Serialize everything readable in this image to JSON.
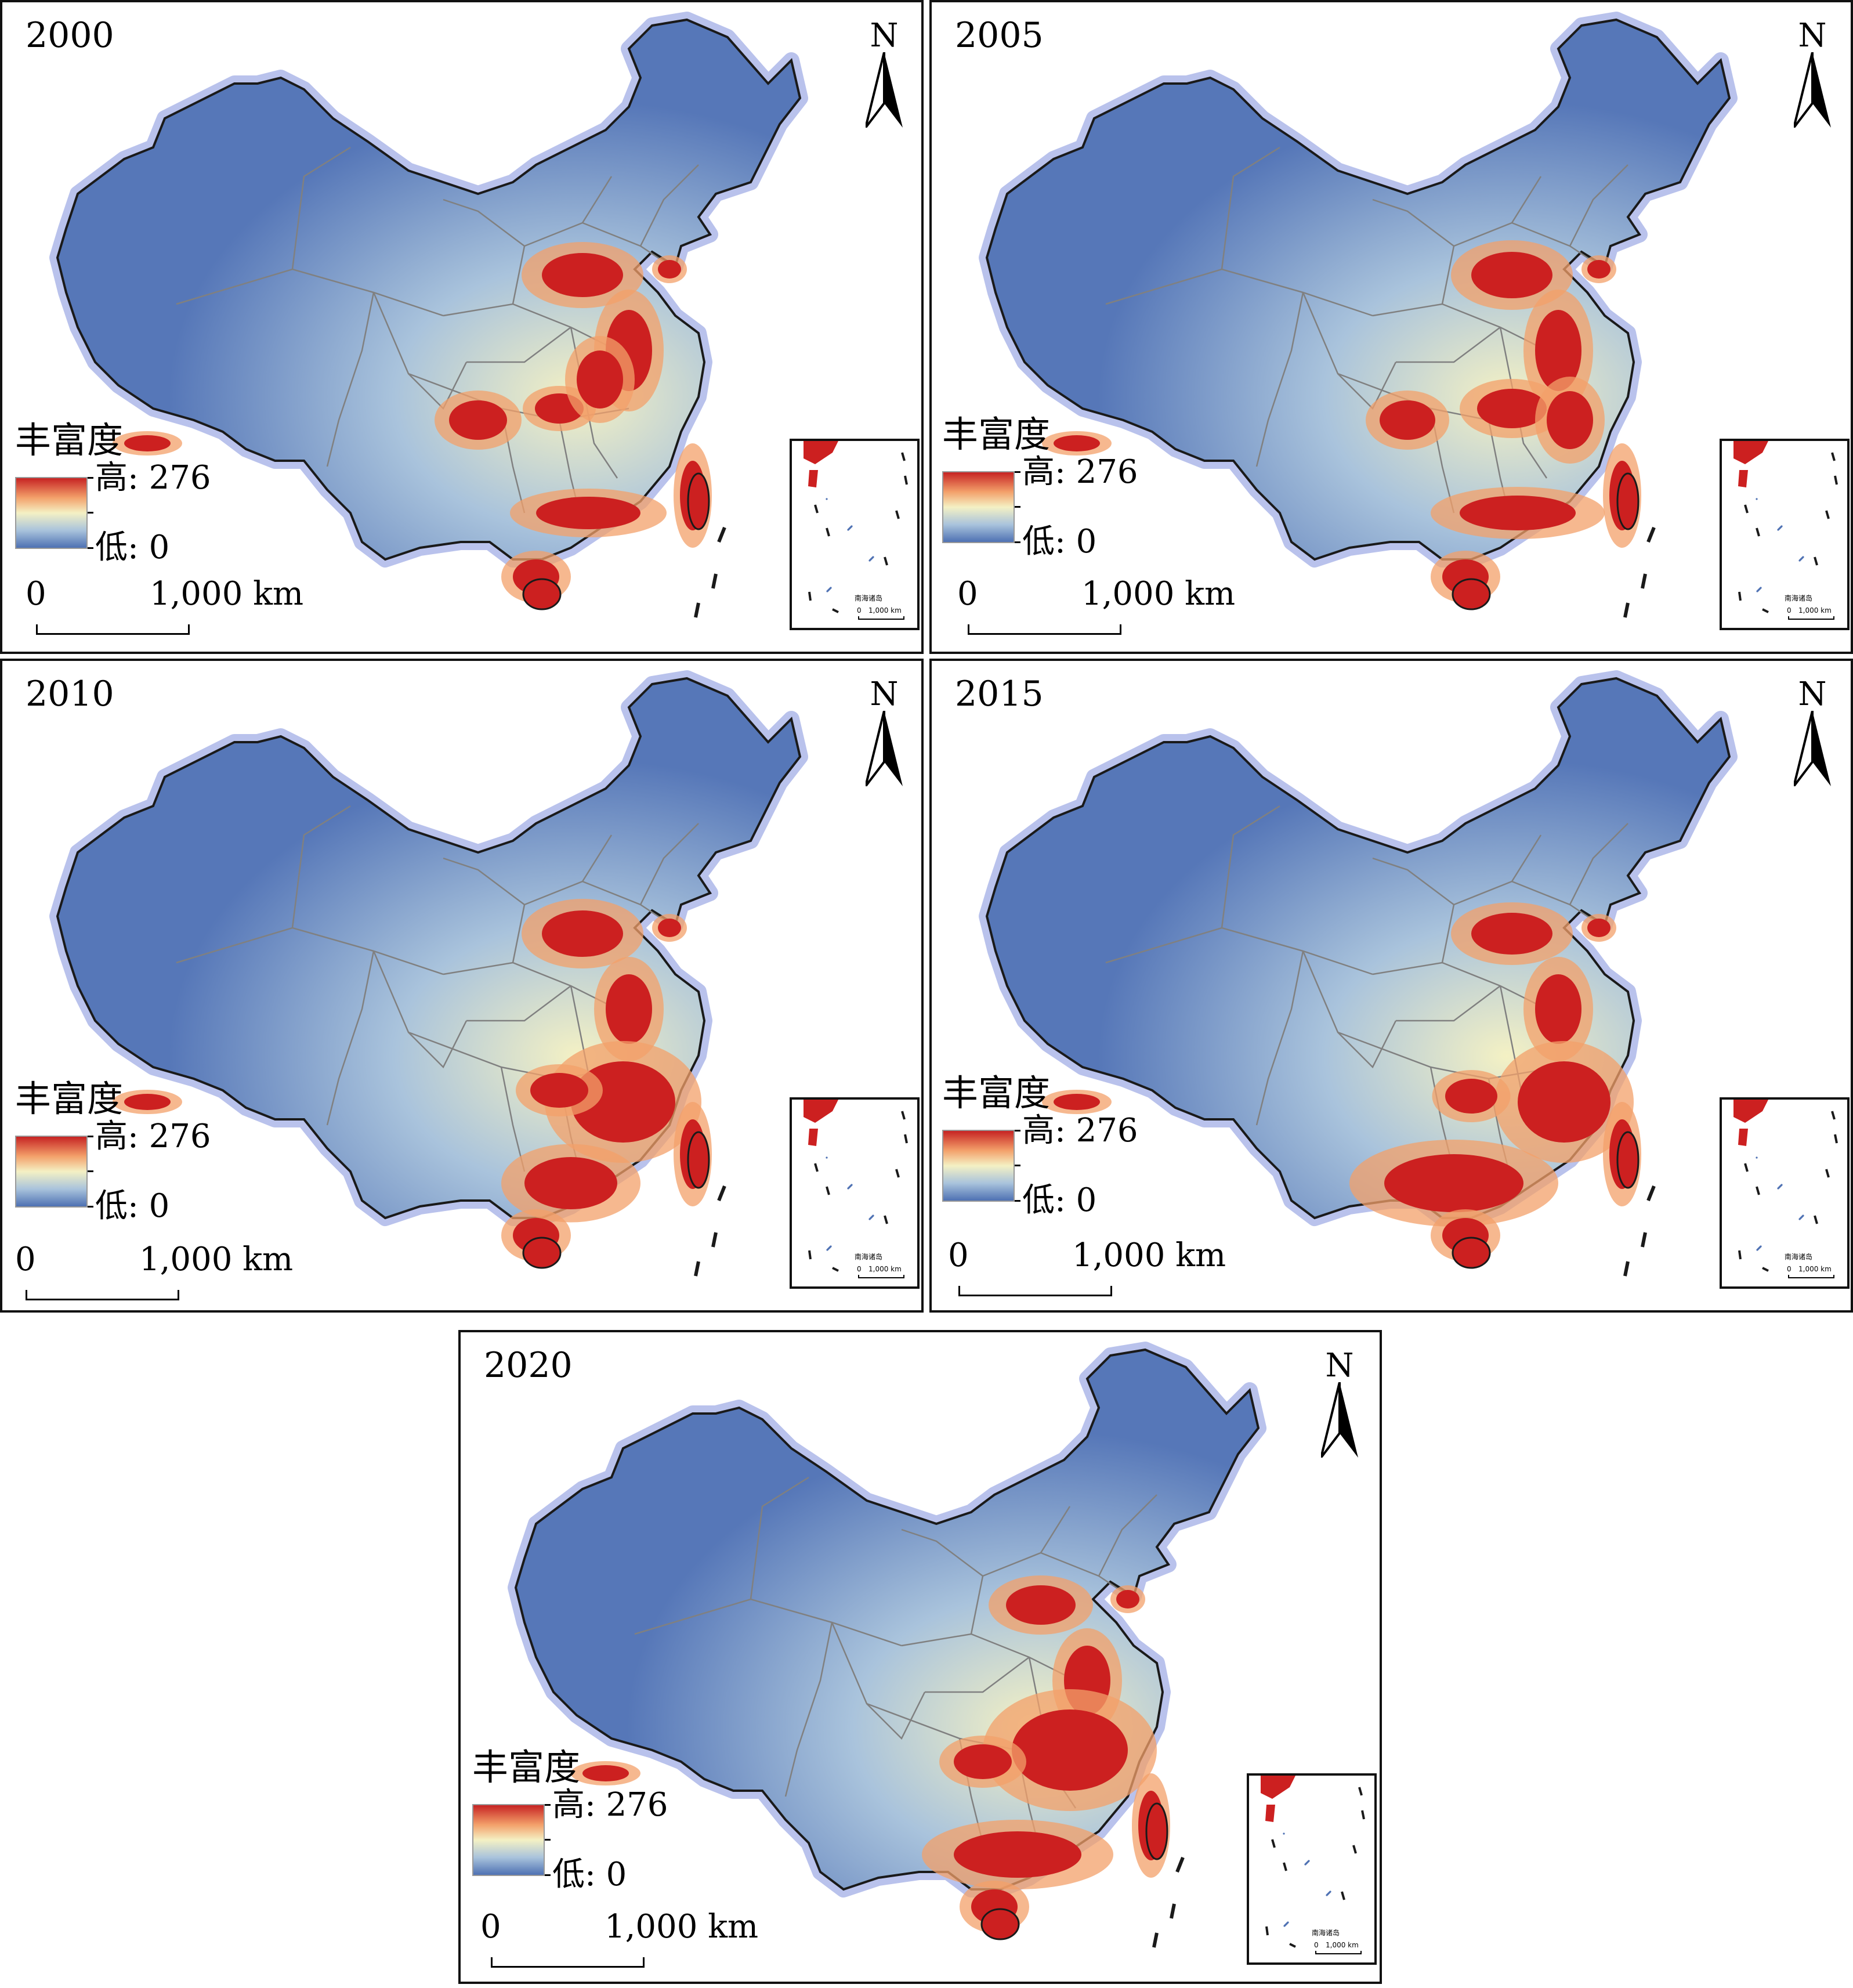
{
  "map_title_legend": "丰富度",
  "legend_high": "高: 276",
  "legend_low": "低: 0",
  "scale_zero": "0",
  "scale_label": "1,000 km",
  "north_label": "N",
  "inset_title": "南海诸岛",
  "inset_scale_zero": "0",
  "inset_scale_label": "1,000 km",
  "colors": {
    "ramp_high": "#c62323",
    "ramp_mid_high": "#f3a06a",
    "ramp_mid": "#f4f1c4",
    "ramp_mid_low": "#a9c3dc",
    "ramp_low": "#4e71b3",
    "base_land": "#5677b8",
    "hotspot": "#cc2020",
    "boundary": "#1a1a1a",
    "province_line": "#808080",
    "halo": "#b9c2ec"
  },
  "panels": [
    {
      "year": "2000",
      "intensity": 0.55
    },
    {
      "year": "2005",
      "intensity": 0.6
    },
    {
      "year": "2010",
      "intensity": 0.8
    },
    {
      "year": "2015",
      "intensity": 0.85
    },
    {
      "year": "2020",
      "intensity": 0.75
    }
  ]
}
